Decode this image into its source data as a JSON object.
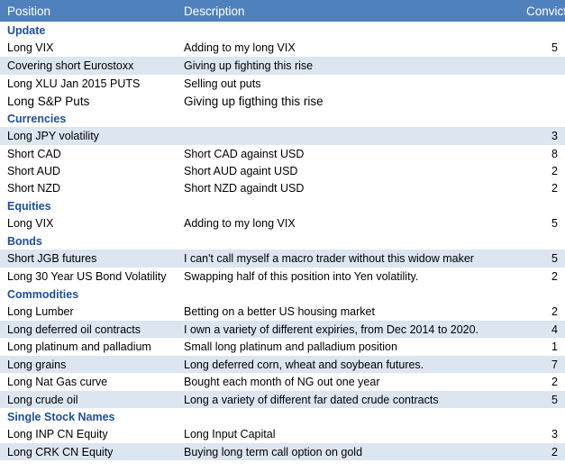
{
  "header": {
    "position": "Position",
    "description": "Description",
    "conviction": "Conviction"
  },
  "rows": [
    {
      "type": "section",
      "position": "Update",
      "description": "",
      "conviction": ""
    },
    {
      "type": "data",
      "position": "Long VIX",
      "description": "Adding to my long VIX",
      "conviction": "5"
    },
    {
      "type": "data",
      "position": "Covering short Eurostoxx",
      "description": "Giving up fighting this rise",
      "conviction": ""
    },
    {
      "type": "data",
      "position": "Long XLU Jan 2015 PUTS",
      "description": "Selling out puts",
      "conviction": ""
    },
    {
      "type": "data",
      "position": "Long S&P Puts",
      "description": "Giving up figthing this rise",
      "conviction": ""
    },
    {
      "type": "section",
      "position": "Currencies",
      "description": "",
      "conviction": ""
    },
    {
      "type": "data",
      "position": "Long JPY volatility",
      "description": "",
      "conviction": "3"
    },
    {
      "type": "data",
      "position": "Short CAD",
      "description": "Short CAD against USD",
      "conviction": "8"
    },
    {
      "type": "data",
      "position": "Short AUD",
      "description": "Short AUD againt USD",
      "conviction": "2"
    },
    {
      "type": "data",
      "position": "Short NZD",
      "description": "Short NZD againdt USD",
      "conviction": "2"
    },
    {
      "type": "section",
      "position": "Equities",
      "description": "",
      "conviction": ""
    },
    {
      "type": "data",
      "position": "Long VIX",
      "description": "Adding to my long VIX",
      "conviction": "5"
    },
    {
      "type": "section",
      "position": "Bonds",
      "description": "",
      "conviction": ""
    },
    {
      "type": "data",
      "position": "Short JGB futures",
      "description": "I can't call myself a macro trader without this widow maker",
      "conviction": "5"
    },
    {
      "type": "data",
      "position": "Long 30 Year US Bond Volatility",
      "description": "Swapping half of this position into Yen volatility.",
      "conviction": "2"
    },
    {
      "type": "section",
      "position": "Commodities",
      "description": "",
      "conviction": ""
    },
    {
      "type": "data",
      "position": "Long Lumber",
      "description": "Betting on a better US housing market",
      "conviction": "2"
    },
    {
      "type": "data",
      "position": "Long deferred oil contracts",
      "description": "I own a variety of different expiries, from Dec 2014 to 2020.",
      "conviction": "4"
    },
    {
      "type": "data",
      "position": "Long platinum and palladium",
      "description": "Small long platinum and palladium position",
      "conviction": "1"
    },
    {
      "type": "data",
      "position": "Long grains",
      "description": "Long deferred corn, wheat and soybean futures.",
      "conviction": "7"
    },
    {
      "type": "data",
      "position": "Long Nat Gas curve",
      "description": "Bought each month of NG out one year",
      "conviction": "2"
    },
    {
      "type": "data",
      "position": "Long crude oil",
      "description": "Long a variety of different far dated crude contracts",
      "conviction": "5"
    },
    {
      "type": "section",
      "position": "Single Stock Names",
      "description": "",
      "conviction": ""
    },
    {
      "type": "data",
      "position": "Long INP CN Equity",
      "description": "Long Input Capital",
      "conviction": "3"
    },
    {
      "type": "data",
      "position": "Long CRK CN Equity",
      "description": "Buying long term call option on gold",
      "conviction": "2"
    }
  ]
}
